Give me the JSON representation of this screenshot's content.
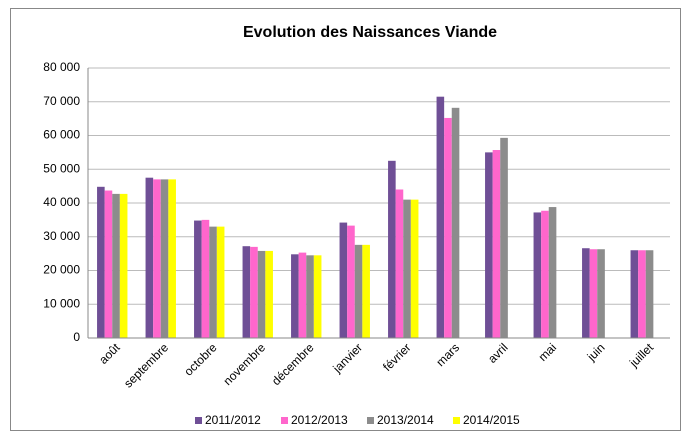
{
  "chart_data": {
    "type": "bar",
    "title": "Evolution des Naissances Viande",
    "categories": [
      "août",
      "septembre",
      "octobre",
      "novembre",
      "décembre",
      "janvier",
      "février",
      "mars",
      "avril",
      "mai",
      "juin",
      "juillet"
    ],
    "series": [
      {
        "name": "2011/2012",
        "color": "#6f4f96",
        "values": [
          44800,
          47500,
          34800,
          27200,
          24800,
          34200,
          52500,
          71500,
          55000,
          37200,
          26600,
          26000
        ]
      },
      {
        "name": "2012/2013",
        "color": "#ff66cc",
        "values": [
          43700,
          47000,
          35000,
          27000,
          25300,
          33300,
          44000,
          65200,
          55700,
          37700,
          26300,
          26000
        ]
      },
      {
        "name": "2013/2014",
        "color": "#8c8c8c",
        "values": [
          42700,
          47000,
          33000,
          25800,
          24500,
          27600,
          41000,
          68200,
          59300,
          38800,
          26300,
          26000
        ]
      },
      {
        "name": "2014/2015",
        "color": "#ffff00",
        "values": [
          42700,
          47000,
          33000,
          25800,
          24500,
          27600,
          41000,
          null,
          null,
          null,
          null,
          null
        ]
      }
    ],
    "ylim": [
      0,
      80000
    ],
    "yticks": [
      0,
      {
        "value": 10000,
        "label": "10 000"
      },
      {
        "value": 20000,
        "label": "20 000"
      },
      {
        "value": 30000,
        "label": "30 000"
      },
      {
        "value": 40000,
        "label": "40 000"
      },
      {
        "value": 50000,
        "label": "50 000"
      },
      {
        "value": 60000,
        "label": "60 000"
      },
      {
        "value": 70000,
        "label": "70 000"
      },
      {
        "value": 80000,
        "label": "80 000"
      }
    ],
    "grid": true,
    "legend": "bottom"
  }
}
